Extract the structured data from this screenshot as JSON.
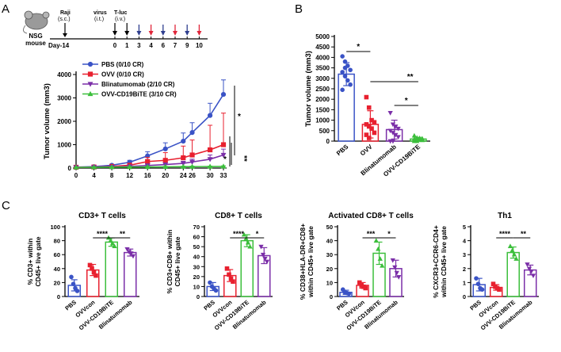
{
  "panels": {
    "A": "A",
    "B": "B",
    "C": "C"
  },
  "timeline": {
    "mouse_label": [
      "NSG",
      "mouse"
    ],
    "day_label": "Day-14",
    "raji_label": "Raji",
    "raji_route": "(s.c.)",
    "virus_label": "virus",
    "virus_route": "(i.t.)",
    "tluc_label": "T-luc",
    "tluc_route": "(i.v.)",
    "days": [
      "0",
      "1",
      "3",
      "4",
      "6",
      "7",
      "9",
      "10"
    ],
    "virus_days": [
      "0",
      "3",
      "6",
      "9"
    ],
    "tcell_days": [
      "1",
      "4",
      "7",
      "10"
    ],
    "virus_color": "#2f3f8f",
    "tcell_color": "#e0263a"
  },
  "colors": {
    "blue": "#3a53c6",
    "red": "#e8202f",
    "purple": "#7b2fa8",
    "green": "#3cbf3c"
  },
  "chart_data": [
    {
      "type": "line",
      "panel": "A",
      "ylabel": "Tumor volume (mm3)",
      "x": [
        0,
        4,
        8,
        12,
        16,
        20,
        24,
        26,
        30,
        33
      ],
      "xticks": [
        "0",
        "4",
        "8",
        "12",
        "16",
        "20",
        "24",
        "26",
        "30",
        "33"
      ],
      "yticks": [
        "0",
        "1000",
        "2000",
        "3000",
        "4000"
      ],
      "ylim": [
        0,
        4000
      ],
      "series": [
        {
          "name": "PBS (0/10 CR)",
          "color": "#3a53c6",
          "marker": "circle",
          "values": [
            40,
            60,
            120,
            250,
            520,
            820,
            1150,
            1520,
            2250,
            3150
          ],
          "err": [
            15,
            20,
            40,
            80,
            180,
            260,
            350,
            420,
            520,
            620
          ]
        },
        {
          "name": "OVV (0/10 CR)",
          "color": "#e8202f",
          "marker": "square",
          "values": [
            35,
            45,
            70,
            120,
            280,
            330,
            440,
            560,
            780,
            1000
          ],
          "err": [
            10,
            15,
            30,
            80,
            180,
            330,
            500,
            640,
            1050,
            1350
          ]
        },
        {
          "name": "Blinatumomab (2/10 CR)",
          "color": "#7b2fa8",
          "marker": "triangle-down",
          "values": [
            30,
            40,
            50,
            70,
            110,
            150,
            200,
            260,
            380,
            560
          ],
          "err": [
            10,
            12,
            20,
            30,
            50,
            70,
            90,
            120,
            180,
            250
          ]
        },
        {
          "name": "OVV-CD19BiTE (3/10 CR)",
          "color": "#3cbf3c",
          "marker": "triangle-up",
          "values": [
            30,
            35,
            40,
            45,
            50,
            55,
            60,
            62,
            65,
            70
          ],
          "err": [
            8,
            10,
            12,
            15,
            15,
            18,
            20,
            20,
            20,
            25
          ]
        }
      ],
      "significance": [
        "*",
        "*",
        "**"
      ]
    },
    {
      "type": "bar",
      "panel": "B",
      "ylabel": "Tumor volume (mm3)",
      "categories": [
        "PBS",
        "OVV",
        "Blinatumomab",
        "OVV-CD19BiTE"
      ],
      "colors": [
        "#3a53c6",
        "#e8202f",
        "#7b2fa8",
        "#3cbf3c"
      ],
      "markers": [
        "circle",
        "square",
        "triangle-down",
        "triangle-up"
      ],
      "values": [
        3200,
        800,
        550,
        100
      ],
      "err": [
        550,
        650,
        450,
        80
      ],
      "points": [
        [
          4050,
          3800,
          3600,
          3400,
          3300,
          3100,
          2900,
          2700,
          2450,
          3500
        ],
        [
          2100,
          1600,
          1000,
          900,
          800,
          700,
          600,
          400,
          300,
          150
        ],
        [
          1350,
          800,
          700,
          600,
          500,
          400,
          300,
          200,
          0,
          0
        ],
        [
          260,
          160,
          140,
          120,
          100,
          80,
          60,
          40,
          0,
          0
        ]
      ],
      "yticks": [
        "0",
        "500",
        "1000",
        "1500",
        "2000",
        "2500",
        "3000",
        "3500",
        "4000",
        "4500",
        "5000"
      ],
      "ylim": [
        0,
        5000
      ],
      "significance": [
        "*",
        "**",
        "*"
      ]
    },
    {
      "type": "bar",
      "panel": "C1",
      "title": "CD3+ T cells",
      "ylabel": [
        "% CD3+ within",
        "CD45+ live gate"
      ],
      "categories": [
        "PBS",
        "OVVcon",
        "OVV-CD19BiTE",
        "Blinatumomab"
      ],
      "colors": [
        "#3a53c6",
        "#e8202f",
        "#3cbf3c",
        "#7b2fa8"
      ],
      "markers": [
        "circle",
        "square",
        "triangle-up",
        "triangle-down"
      ],
      "values": [
        16,
        38,
        78,
        63
      ],
      "err": [
        8,
        8,
        6,
        5
      ],
      "points": [
        [
          28,
          18,
          12,
          8
        ],
        [
          45,
          40,
          35,
          30
        ],
        [
          84,
          80,
          76,
          72
        ],
        [
          68,
          64,
          62,
          58
        ]
      ],
      "yticks": [
        "0",
        "20",
        "40",
        "60",
        "80",
        "100"
      ],
      "ylim": [
        0,
        100
      ],
      "significance": [
        "****",
        "**"
      ]
    },
    {
      "type": "bar",
      "panel": "C2",
      "title": "CD8+ T cells",
      "ylabel": [
        "% CD3+CD8+ within",
        "CD45+ live gate"
      ],
      "categories": [
        "PBS",
        "OVVcon",
        "OVV-CD19BiTE",
        "Blinatumomab"
      ],
      "colors": [
        "#3a53c6",
        "#e8202f",
        "#3cbf3c",
        "#7b2fa8"
      ],
      "markers": [
        "circle",
        "square",
        "triangle-up",
        "triangle-down"
      ],
      "values": [
        10,
        21,
        56,
        41
      ],
      "err": [
        4,
        6,
        6,
        8
      ],
      "points": [
        [
          14,
          10,
          8,
          6
        ],
        [
          28,
          22,
          18,
          15
        ],
        [
          62,
          58,
          54,
          50
        ],
        [
          50,
          42,
          38,
          35
        ]
      ],
      "yticks": [
        "0",
        "10",
        "20",
        "30",
        "40",
        "50",
        "60",
        "70"
      ],
      "ylim": [
        0,
        70
      ],
      "significance": [
        "****",
        "*"
      ]
    },
    {
      "type": "bar",
      "panel": "C3",
      "title": "Activated CD8+ T cells",
      "ylabel": [
        "% CD38+HLA-DR+CD8+",
        "within CD45+ live gate"
      ],
      "categories": [
        "PBS",
        "OVVcon",
        "OVV-CD19BiTE",
        "Blinatumomab"
      ],
      "colors": [
        "#3a53c6",
        "#e8202f",
        "#3cbf3c",
        "#7b2fa8"
      ],
      "markers": [
        "circle",
        "square",
        "triangle-up",
        "triangle-down"
      ],
      "values": [
        3,
        8,
        31,
        20
      ],
      "err": [
        1.5,
        2,
        8,
        6
      ],
      "points": [
        [
          5,
          3,
          2.5,
          2
        ],
        [
          10,
          8,
          7,
          6
        ],
        [
          40,
          34,
          27,
          22
        ],
        [
          26,
          21,
          17,
          14
        ]
      ],
      "yticks": [
        "0",
        "10",
        "20",
        "30",
        "40",
        "50"
      ],
      "ylim": [
        0,
        50
      ],
      "significance": [
        "***",
        "*"
      ]
    },
    {
      "type": "bar",
      "panel": "C4",
      "title": "Th1",
      "ylabel": [
        "% CXCR3+CCR6-CD4+",
        "within CD45+ live gate"
      ],
      "categories": [
        "PBS",
        "OVVcon",
        "OVV-CD19BiTE",
        "Blinatumomab"
      ],
      "colors": [
        "#3a53c6",
        "#e8202f",
        "#3cbf3c",
        "#7b2fa8"
      ],
      "markers": [
        "circle",
        "square",
        "triangle-up",
        "triangle-down"
      ],
      "values": [
        0.85,
        0.65,
        3.15,
        1.9
      ],
      "err": [
        0.45,
        0.2,
        0.4,
        0.35
      ],
      "points": [
        [
          1.3,
          0.9,
          0.6,
          0.5
        ],
        [
          0.9,
          0.7,
          0.6,
          0.5
        ],
        [
          3.6,
          3.3,
          3.0,
          2.7
        ],
        [
          2.3,
          2.0,
          1.8,
          1.5
        ]
      ],
      "yticks": [
        "0",
        "1",
        "2",
        "3",
        "4",
        "5"
      ],
      "ylim": [
        0,
        5
      ],
      "significance": [
        "****",
        "**"
      ]
    }
  ]
}
